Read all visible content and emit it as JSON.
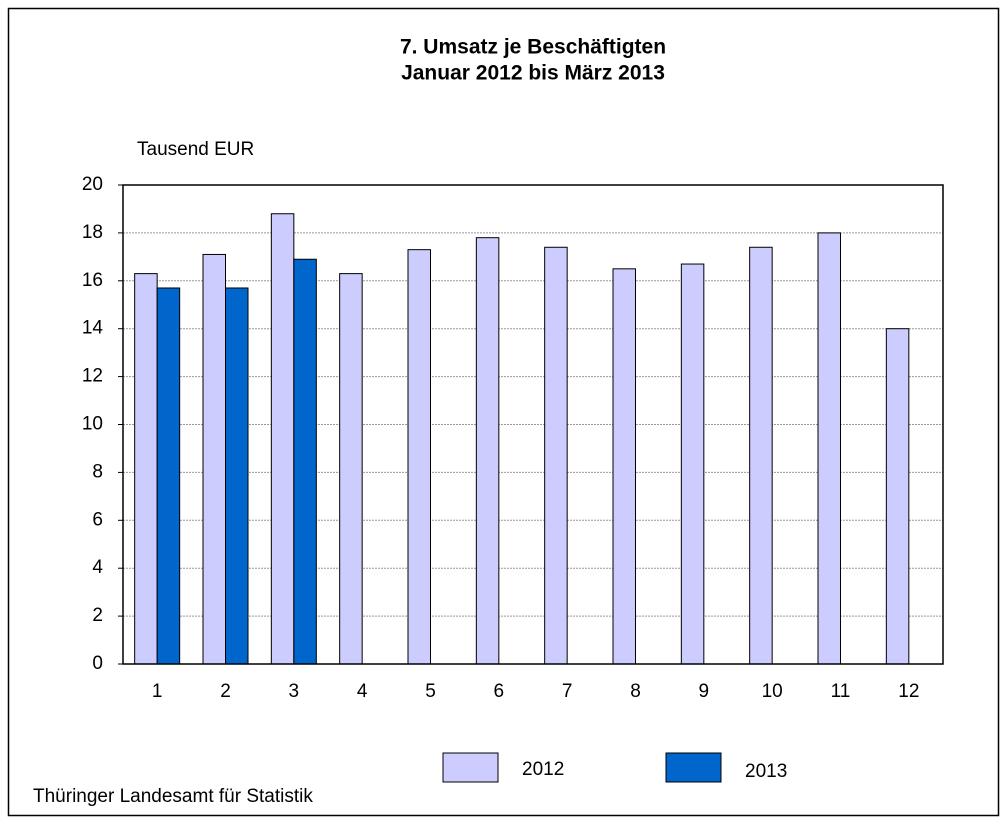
{
  "chart_data": {
    "type": "bar",
    "title": "7. Umsatz je Beschäftigten",
    "subtitle": "Januar 2012 bis März 2013",
    "y_label": "Tausend EUR",
    "source": "Thüringer Landesamt für Statistik",
    "categories": [
      "1",
      "2",
      "3",
      "4",
      "5",
      "6",
      "7",
      "8",
      "9",
      "10",
      "11",
      "12"
    ],
    "series": [
      {
        "name": "2012",
        "color": "#ccccff",
        "values": [
          16.3,
          17.1,
          18.8,
          16.3,
          17.3,
          17.8,
          17.4,
          16.5,
          16.7,
          17.4,
          18.0,
          14.0
        ]
      },
      {
        "name": "2013",
        "color": "#0066cc",
        "values": [
          15.7,
          15.7,
          16.9,
          null,
          null,
          null,
          null,
          null,
          null,
          null,
          null,
          null
        ]
      }
    ],
    "ylim": [
      0,
      20
    ],
    "yticks": [
      0,
      2,
      4,
      6,
      8,
      10,
      12,
      14,
      16,
      18,
      20
    ],
    "grid": true
  }
}
